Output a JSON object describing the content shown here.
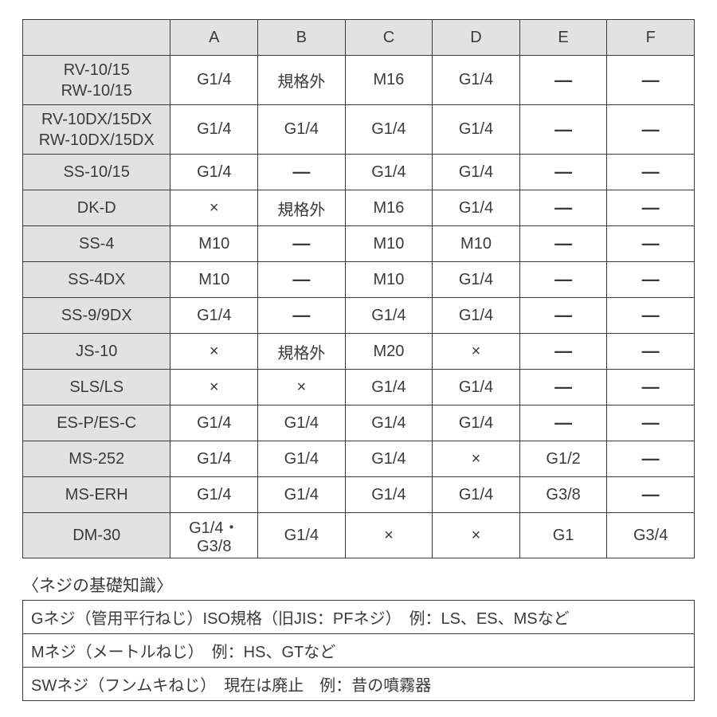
{
  "table": {
    "columns": [
      "A",
      "B",
      "C",
      "D",
      "E",
      "F"
    ],
    "column_widths": {
      "label_pct": 22,
      "data_pct": 13
    },
    "header_bg": "#e2e2e2",
    "label_bg": "#e2e2e2",
    "border_color": "#3a3a3a",
    "fontsize": 20,
    "rows": [
      {
        "label_lines": [
          "RV-10/15",
          "RW-10/15"
        ],
        "tall": true,
        "cells": [
          "G1/4",
          "規格外",
          "M16",
          "G1/4",
          "—",
          "—"
        ]
      },
      {
        "label_lines": [
          "RV-10DX/15DX",
          "RW-10DX/15DX"
        ],
        "tall": true,
        "label_small": true,
        "cells": [
          "G1/4",
          "G1/4",
          "G1/4",
          "G1/4",
          "—",
          "—"
        ]
      },
      {
        "label_lines": [
          "SS-10/15"
        ],
        "cells": [
          "G1/4",
          "—",
          "G1/4",
          "G1/4",
          "—",
          "—"
        ]
      },
      {
        "label_lines": [
          "DK-D"
        ],
        "cells": [
          "×",
          "規格外",
          "M16",
          "G1/4",
          "—",
          "—"
        ]
      },
      {
        "label_lines": [
          "SS-4"
        ],
        "cells": [
          "M10",
          "—",
          "M10",
          "M10",
          "—",
          "—"
        ]
      },
      {
        "label_lines": [
          "SS-4DX"
        ],
        "cells": [
          "M10",
          "—",
          "M10",
          "G1/4",
          "—",
          "—"
        ]
      },
      {
        "label_lines": [
          "SS-9/9DX"
        ],
        "cells": [
          "G1/4",
          "—",
          "G1/4",
          "G1/4",
          "—",
          "—"
        ]
      },
      {
        "label_lines": [
          "JS-10"
        ],
        "cells": [
          "×",
          "規格外",
          "M20",
          "×",
          "—",
          "—"
        ]
      },
      {
        "label_lines": [
          "SLS/LS"
        ],
        "cells": [
          "×",
          "×",
          "G1/4",
          "G1/4",
          "—",
          "—"
        ]
      },
      {
        "label_lines": [
          "ES-P/ES-C"
        ],
        "cells": [
          "G1/4",
          "G1/4",
          "G1/4",
          "G1/4",
          "—",
          "—"
        ]
      },
      {
        "label_lines": [
          "MS-252"
        ],
        "cells": [
          "G1/4",
          "G1/4",
          "G1/4",
          "×",
          "G1/2",
          "—"
        ]
      },
      {
        "label_lines": [
          "MS-ERH"
        ],
        "cells": [
          "G1/4",
          "G1/4",
          "G1/4",
          "G1/4",
          "G3/8",
          "—"
        ]
      },
      {
        "label_lines": [
          "DM-30"
        ],
        "cells": [
          "G1/4・G3/8",
          "G1/4",
          "×",
          "×",
          "G1",
          "G3/4"
        ],
        "cell_small": [
          true,
          false,
          false,
          false,
          false,
          false
        ]
      }
    ]
  },
  "notes": {
    "title": "〈ネジの基礎知識〉",
    "lines": [
      "Gネジ（管用平行ねじ）ISO規格（旧JIS：PFネジ）　例：LS、ES、MSなど",
      "Mネジ（メートルねじ）　例：HS、GTなど",
      "SWネジ（フンムキねじ）　現在は廃止　例：昔の噴霧器"
    ]
  }
}
